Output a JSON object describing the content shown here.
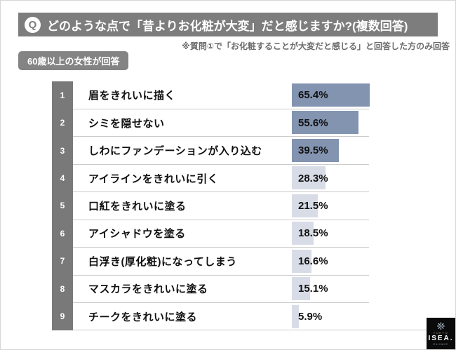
{
  "header": {
    "q_badge": "Q",
    "title": "どのような点で「昔よりお化粧が大変」だと感じますか?(複数回答)"
  },
  "note": "※質問①で「お化粧することが大変だと感じる」と回答した方のみ回答",
  "respondent_badge": "60歳以上の女性が回答",
  "chart_data": {
    "type": "bar",
    "orientation": "horizontal",
    "title": "どのような点で「昔よりお化粧が大変」だと感じますか?(複数回答)",
    "unit": "%",
    "ranks": [
      1,
      2,
      3,
      4,
      5,
      6,
      7,
      8,
      9
    ],
    "categories": [
      "眉をきれいに描く",
      "シミを隠せない",
      "しわにファンデーションが入り込む",
      "アイラインをきれいに引く",
      "口紅をきれいに塗る",
      "アイシャドウを塗る",
      "白浮き(厚化粧)になってしまう",
      "マスカラをきれいに塗る",
      "チークをきれいに塗る"
    ],
    "values": [
      65.4,
      55.6,
      39.5,
      28.3,
      21.5,
      18.5,
      16.6,
      15.1,
      5.9
    ],
    "value_labels": [
      "65.4%",
      "55.6%",
      "39.5%",
      "28.3%",
      "21.5%",
      "18.5%",
      "16.6%",
      "15.1%",
      "5.9%"
    ],
    "emphasized_top_n": 3,
    "xlim": [
      0,
      70
    ],
    "grid": false,
    "legend": false
  },
  "logo": {
    "icon": "starburst-icon",
    "top_text": "TOKYO",
    "brand": "ISEA.",
    "bottom_text": "CLINIC"
  },
  "colors": {
    "header_bg": "#7d7d7d",
    "header_text": "#ffffff",
    "q_text": "#7d7d7d",
    "note_text": "#6b6b6b",
    "badge_bg": "#848484",
    "rank_strip_bg": "#797979",
    "bar_emphasized": "#8394b0",
    "bar_default": "#d8dce6",
    "separator": "#cbcbcb",
    "logo_bg": "#0a0a0a",
    "logo_star": "#c8def0"
  }
}
